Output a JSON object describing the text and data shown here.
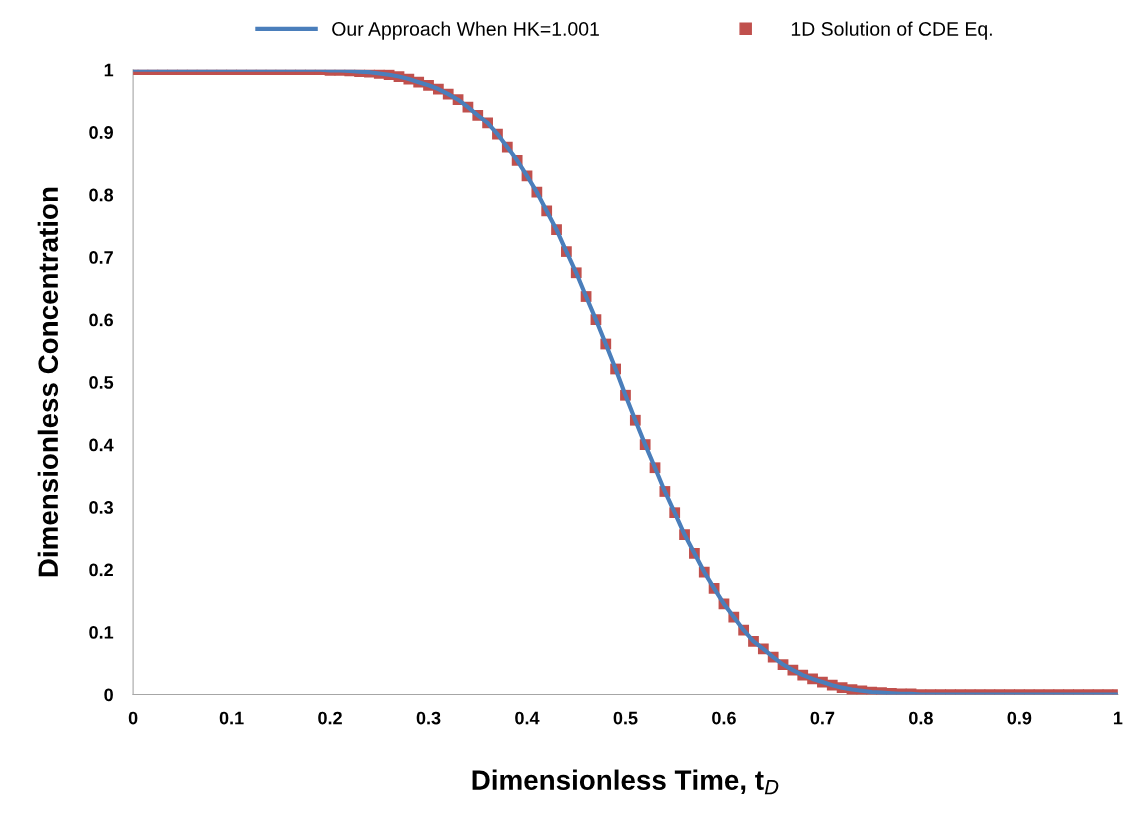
{
  "chart_data": {
    "type": "line",
    "xlabel": "Dimensionless Time, t$_{D}$",
    "ylabel": "Dimensionless Concentration",
    "x": [
      0,
      0.01,
      0.02,
      0.03,
      0.04,
      0.05,
      0.06,
      0.07,
      0.08,
      0.09,
      0.1,
      0.11,
      0.12,
      0.13,
      0.14,
      0.15,
      0.16,
      0.17,
      0.18,
      0.19,
      0.2,
      0.21,
      0.22,
      0.23,
      0.24,
      0.25,
      0.26,
      0.27,
      0.28,
      0.29,
      0.3,
      0.31,
      0.32,
      0.33,
      0.34,
      0.35,
      0.36,
      0.37,
      0.38,
      0.39,
      0.4,
      0.41,
      0.42,
      0.43,
      0.44,
      0.45,
      0.46,
      0.47,
      0.48,
      0.49,
      0.5,
      0.51,
      0.52,
      0.53,
      0.54,
      0.55,
      0.56,
      0.57,
      0.58,
      0.59,
      0.6,
      0.61,
      0.62,
      0.63,
      0.64,
      0.65,
      0.66,
      0.67,
      0.68,
      0.69,
      0.7,
      0.71,
      0.72,
      0.73,
      0.74,
      0.75,
      0.76,
      0.77,
      0.78,
      0.79,
      0.8,
      0.81,
      0.82,
      0.83,
      0.84,
      0.85,
      0.86,
      0.87,
      0.88,
      0.89,
      0.9,
      0.91,
      0.92,
      0.93,
      0.94,
      0.95,
      0.96,
      0.97,
      0.98,
      0.99,
      1
    ],
    "series": [
      {
        "name": "Our Approach When HK=1.001",
        "color": "#4a7ebb",
        "marker": "none",
        "values": [
          1,
          1,
          1,
          1,
          1,
          1,
          1,
          1,
          1,
          1,
          1,
          1,
          1,
          1,
          1,
          1,
          1,
          1,
          1,
          1,
          0.999,
          0.999,
          0.998,
          0.997,
          0.996,
          0.994,
          0.992,
          0.989,
          0.985,
          0.98,
          0.975,
          0.969,
          0.961,
          0.952,
          0.94,
          0.927,
          0.915,
          0.897,
          0.876,
          0.855,
          0.83,
          0.804,
          0.774,
          0.744,
          0.709,
          0.675,
          0.637,
          0.6,
          0.561,
          0.521,
          0.479,
          0.439,
          0.4,
          0.363,
          0.325,
          0.291,
          0.256,
          0.226,
          0.196,
          0.17,
          0.145,
          0.124,
          0.103,
          0.085,
          0.073,
          0.06,
          0.048,
          0.039,
          0.031,
          0.025,
          0.02,
          0.015,
          0.011,
          0.008,
          0.006,
          0.004,
          0.003,
          0.002,
          0.001,
          0.001,
          0,
          0,
          0,
          0,
          0,
          0,
          0,
          0,
          0,
          0,
          0,
          0,
          0,
          0,
          0,
          0,
          0,
          0,
          0,
          0,
          0
        ]
      },
      {
        "name": "1D Solution of CDE Eq.",
        "type": "scatter",
        "color": "#c0504d",
        "marker": "square",
        "values": [
          1,
          1,
          1,
          1,
          1,
          1,
          1,
          1,
          1,
          1,
          1,
          1,
          1,
          1,
          1,
          1,
          1,
          1,
          1,
          1,
          0.999,
          0.999,
          0.998,
          0.997,
          0.996,
          0.994,
          0.992,
          0.989,
          0.985,
          0.98,
          0.975,
          0.969,
          0.961,
          0.952,
          0.94,
          0.927,
          0.915,
          0.897,
          0.876,
          0.855,
          0.83,
          0.804,
          0.774,
          0.744,
          0.709,
          0.675,
          0.637,
          0.6,
          0.561,
          0.521,
          0.479,
          0.439,
          0.4,
          0.363,
          0.325,
          0.291,
          0.256,
          0.226,
          0.196,
          0.17,
          0.145,
          0.124,
          0.103,
          0.085,
          0.073,
          0.06,
          0.048,
          0.039,
          0.031,
          0.025,
          0.02,
          0.015,
          0.011,
          0.008,
          0.006,
          0.004,
          0.003,
          0.002,
          0.001,
          0.001,
          0,
          0,
          0,
          0,
          0,
          0,
          0,
          0,
          0,
          0,
          0,
          0,
          0,
          0,
          0,
          0,
          0,
          0,
          0,
          0,
          0
        ]
      }
    ],
    "xlim": [
      0,
      1
    ],
    "xticks": [
      0,
      0.1,
      0.2,
      0.3,
      0.4,
      0.5,
      0.6,
      0.7,
      0.8,
      0.9,
      1
    ],
    "ylim": [
      0,
      1
    ],
    "yticks": [
      0,
      0.1,
      0.2,
      0.3,
      0.4,
      0.5,
      0.6,
      0.7,
      0.8,
      0.9,
      1
    ],
    "legend": "top",
    "grid": false
  }
}
